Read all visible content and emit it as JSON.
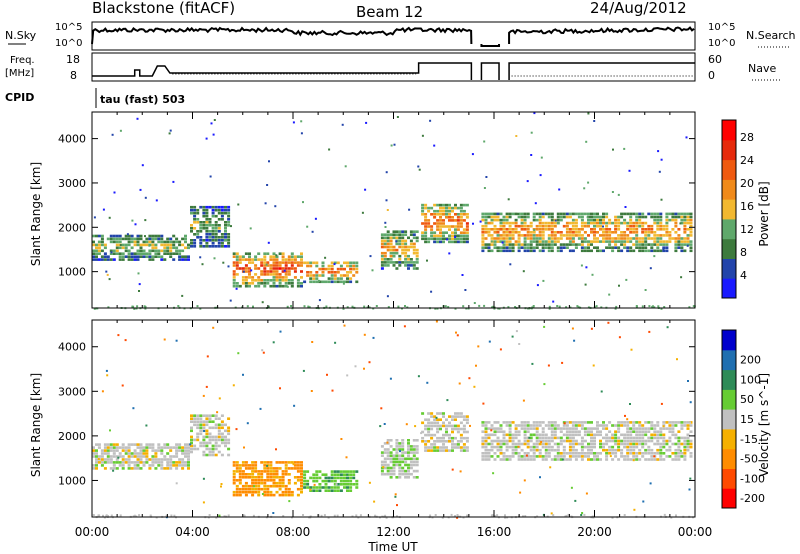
{
  "header": {
    "station": "Blackstone (fitACF)",
    "beam": "Beam 12",
    "date": "24/Aug/2012"
  },
  "top_panels": {
    "nsky_label": "N.Sky",
    "nsearch_label": "N.Search",
    "ticks_top": [
      "10^5",
      "10^0"
    ],
    "freq_label_1": "Freq.",
    "freq_label_2": "[MHz]",
    "freq_ticks": [
      "18",
      "8"
    ],
    "nave_label": "Nave",
    "nave_ticks": [
      "60",
      "0"
    ],
    "cpid_label": "CPID",
    "cpid_value": "tau (fast) 503"
  },
  "colors": {
    "power": [
      "#1a1aff",
      "#2244aa",
      "#3d7a3d",
      "#5fa86b",
      "#f2b830",
      "#f08a1a",
      "#ef5a10",
      "#e62a0c",
      "#ff0000"
    ],
    "velocity": [
      "#ff0000",
      "#ff4a00",
      "#ff8c00",
      "#f5b000",
      "#c0c0c0",
      "#66cc33",
      "#2e8b57",
      "#1f6fb0",
      "#0000cc"
    ]
  },
  "chart_data": [
    {
      "type": "heatmap",
      "title": "",
      "xlabel": "Time UT",
      "ylabel": "Slant Range [km]",
      "colorbar_label": "Power [dB]",
      "x_ticks": [
        "00:00",
        "04:00",
        "08:00",
        "12:00",
        "16:00",
        "20:00",
        "00:00"
      ],
      "xlim_hours": [
        0,
        24
      ],
      "ylim": [
        180,
        4600
      ],
      "y_ticks": [
        1000,
        2000,
        3000,
        4000
      ],
      "colorbar_ticks": [
        "4",
        "8",
        "12",
        "16",
        "20",
        "24",
        "28"
      ],
      "colorbar_range": [
        0,
        31
      ],
      "bands": [
        {
          "t0": 0.0,
          "t1": 3.9,
          "r0": 1300,
          "r1": 1900,
          "level": 14
        },
        {
          "t0": 3.9,
          "t1": 5.5,
          "r0": 1600,
          "r1": 2550,
          "level": 12
        },
        {
          "t0": 5.6,
          "t1": 8.4,
          "r0": 700,
          "r1": 1500,
          "level": 24
        },
        {
          "t0": 8.4,
          "t1": 10.6,
          "r0": 800,
          "r1": 1300,
          "level": 22
        },
        {
          "t0": 11.5,
          "t1": 13.0,
          "r0": 1100,
          "r1": 2000,
          "level": 18
        },
        {
          "t0": 13.1,
          "t1": 15.0,
          "r0": 1700,
          "r1": 2600,
          "level": 22
        },
        {
          "t0": 15.5,
          "t1": 23.9,
          "r0": 1500,
          "r1": 2400,
          "level": 20
        }
      ]
    },
    {
      "type": "heatmap",
      "title": "",
      "xlabel": "Time UT",
      "ylabel": "Slant Range [km]",
      "colorbar_label": "Velocity [m s^-1]",
      "x_ticks": [
        "00:00",
        "04:00",
        "08:00",
        "12:00",
        "16:00",
        "20:00",
        "00:00"
      ],
      "xlim_hours": [
        0,
        24
      ],
      "ylim": [
        180,
        4600
      ],
      "y_ticks": [
        1000,
        2000,
        3000,
        4000
      ],
      "colorbar_ticks": [
        "-200",
        "-100",
        "-50",
        "-15",
        "15",
        "50",
        "100",
        "200"
      ],
      "bands": [
        {
          "t0": 0.0,
          "t1": 3.9,
          "r0": 1300,
          "r1": 1900,
          "level": 0
        },
        {
          "t0": 3.9,
          "t1": 5.5,
          "r0": 1600,
          "r1": 2550,
          "level": 0
        },
        {
          "t0": 5.6,
          "t1": 8.4,
          "r0": 700,
          "r1": 1500,
          "level": -60
        },
        {
          "t0": 8.4,
          "t1": 10.6,
          "r0": 800,
          "r1": 1300,
          "level": 40
        },
        {
          "t0": 11.5,
          "t1": 13.0,
          "r0": 1100,
          "r1": 2000,
          "level": 10
        },
        {
          "t0": 13.1,
          "t1": 15.0,
          "r0": 1700,
          "r1": 2600,
          "level": 0
        },
        {
          "t0": 15.5,
          "t1": 23.9,
          "r0": 1500,
          "r1": 2400,
          "level": 0
        }
      ]
    }
  ]
}
